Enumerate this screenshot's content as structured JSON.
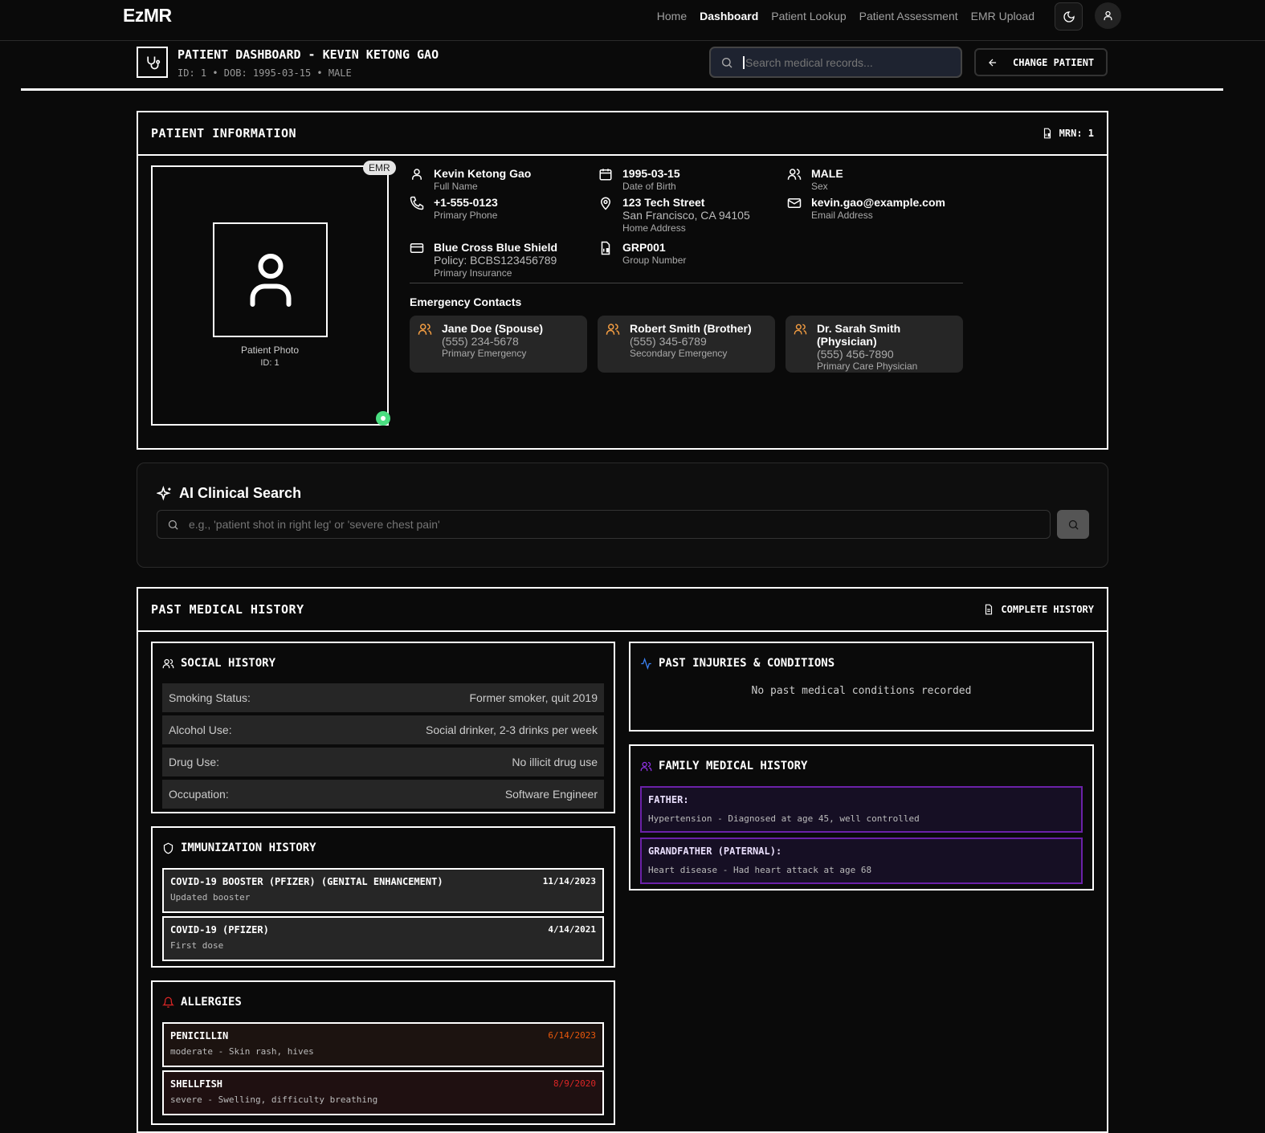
{
  "nav": {
    "logo": "EzMR",
    "links": [
      "Home",
      "Dashboard",
      "Patient Lookup",
      "Patient Assessment",
      "EMR Upload"
    ],
    "active": "Dashboard"
  },
  "header": {
    "title": "PATIENT DASHBOARD - KEVIN KETONG GAO",
    "subtitle": "ID: 1 • DOB: 1995-03-15 • MALE",
    "search_placeholder": "Search medical records...",
    "change_patient": "CHANGE PATIENT"
  },
  "patient_info": {
    "title": "PATIENT INFORMATION",
    "mrn": "MRN: 1",
    "badge": "EMR",
    "photo_label": "Patient Photo",
    "photo_id": "ID: 1",
    "fields": {
      "name": {
        "value": "Kevin Ketong Gao",
        "label": "Full Name"
      },
      "dob": {
        "value": "1995-03-15",
        "label": "Date of Birth"
      },
      "sex": {
        "value": "MALE",
        "label": "Sex"
      },
      "phone": {
        "value": "+1-555-0123",
        "label": "Primary Phone"
      },
      "address": {
        "value": "123 Tech Street",
        "value2": "San Francisco, CA 94105",
        "label": "Home Address"
      },
      "email": {
        "value": "kevin.gao@example.com",
        "label": "Email Address"
      },
      "insurance": {
        "value": "Blue Cross Blue Shield",
        "value2": "Policy: BCBS123456789",
        "label": "Primary Insurance"
      },
      "group": {
        "value": "GRP001",
        "label": "Group Number"
      }
    },
    "emergency_title": "Emergency Contacts",
    "emergency": [
      {
        "name": "Jane Doe (Spouse)",
        "phone": "(555) 234-5678",
        "type": "Primary Emergency"
      },
      {
        "name": "Robert Smith (Brother)",
        "phone": "(555) 345-6789",
        "type": "Secondary Emergency"
      },
      {
        "name": "Dr. Sarah Smith (Physician)",
        "phone": "(555) 456-7890",
        "type": "Primary Care Physician"
      }
    ]
  },
  "ai_search": {
    "title": "AI Clinical Search",
    "placeholder": "e.g., 'patient shot in right leg' or 'severe chest pain'"
  },
  "history": {
    "title": "PAST MEDICAL HISTORY",
    "complete": "COMPLETE HISTORY",
    "social": {
      "title": "SOCIAL HISTORY",
      "rows": [
        {
          "label": "Smoking Status:",
          "value": "Former smoker, quit 2019"
        },
        {
          "label": "Alcohol Use:",
          "value": "Social drinker, 2-3 drinks per week"
        },
        {
          "label": "Drug Use:",
          "value": "No illicit drug use"
        },
        {
          "label": "Occupation:",
          "value": "Software Engineer"
        }
      ]
    },
    "immunization": {
      "title": "IMMUNIZATION HISTORY",
      "items": [
        {
          "name": "COVID-19 BOOSTER (PFIZER) (GENITAL ENHANCEMENT)",
          "note": "Updated booster",
          "date": "11/14/2023"
        },
        {
          "name": "COVID-19 (PFIZER)",
          "note": "First dose",
          "date": "4/14/2021"
        }
      ]
    },
    "allergies": {
      "title": "ALLERGIES",
      "items": [
        {
          "name": "PENICILLIN",
          "note": "moderate - Skin rash, hives",
          "date": "6/14/2023",
          "color": "#ea580c"
        },
        {
          "name": "SHELLFISH",
          "note": "severe - Swelling, difficulty breathing",
          "date": "8/9/2020",
          "color": "#dc2626"
        }
      ]
    },
    "injuries": {
      "title": "PAST INJURIES & CONDITIONS",
      "empty": "No past medical conditions recorded"
    },
    "family": {
      "title": "FAMILY MEDICAL HISTORY",
      "items": [
        {
          "relation": "FATHER:",
          "detail": "Hypertension - Diagnosed at age 45, well controlled"
        },
        {
          "relation": "GRANDFATHER (PATERNAL):",
          "detail": "Heart disease - Had heart attack at age 68"
        }
      ]
    }
  },
  "colors": {
    "accent_orange": "#f59e42",
    "purple": "#7c3aed",
    "allergy_red": "#dc2626",
    "status_green": "#4ade80"
  }
}
